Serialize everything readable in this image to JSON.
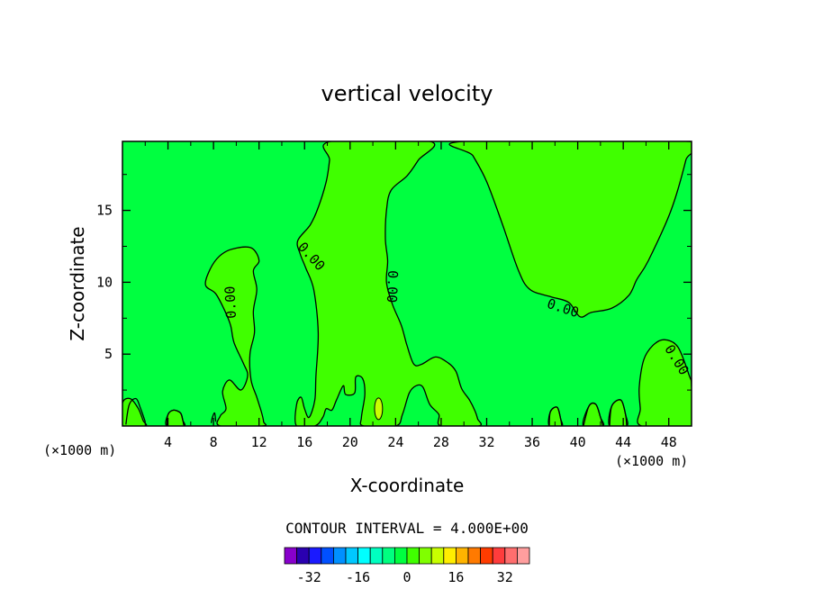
{
  "chart_data": {
    "type": "contour",
    "title": "vertical velocity",
    "xlabel": "X-coordinate",
    "ylabel": "Z-coordinate",
    "x_unit": "(×1000 m)",
    "x_unit_right": "(×1000 m)",
    "xlim": [
      0,
      50
    ],
    "ylim": [
      0,
      19.8
    ],
    "x_ticks": [
      4,
      8,
      12,
      16,
      20,
      24,
      28,
      32,
      36,
      40,
      44,
      48
    ],
    "y_ticks": [
      5,
      10,
      15
    ],
    "contour_label": "0.00",
    "contour_interval_text": "CONTOUR INTERVAL = 4.000E+00",
    "background_color": "#00ff40",
    "positive_region_color": "#40ff00",
    "small_cell_color": "#c8ff00",
    "colorbar": {
      "colors": [
        "#8800cc",
        "#2a00b0",
        "#1a1aff",
        "#0050ff",
        "#0090ff",
        "#00c8ff",
        "#00ffff",
        "#00ffc0",
        "#00ff80",
        "#00ff40",
        "#40ff00",
        "#80ff00",
        "#c8ff00",
        "#ffee00",
        "#ffb400",
        "#ff7a00",
        "#ff3c00",
        "#ff3c3c",
        "#ff6e6e",
        "#ff9e9e"
      ],
      "tick_labels": [
        "-32",
        "-16",
        "0",
        "16",
        "32"
      ],
      "tick_values": [
        -32,
        -16,
        0,
        16,
        32
      ],
      "vmin": -40,
      "vmax": 40
    },
    "regions_positive": [
      {
        "name": "central-plume",
        "polygon": [
          [
            15.3,
            0
          ],
          [
            15.3,
            1.5
          ],
          [
            15.7,
            2.0
          ],
          [
            16.0,
            1.2
          ],
          [
            16.4,
            0.6
          ],
          [
            16.9,
            1.8
          ],
          [
            17.0,
            3.5
          ],
          [
            17.2,
            6.5
          ],
          [
            16.8,
            9.5
          ],
          [
            16.1,
            11.0
          ],
          [
            15.6,
            12.0
          ],
          [
            15.4,
            12.9
          ],
          [
            16.5,
            14.0
          ],
          [
            17.2,
            15.2
          ],
          [
            17.9,
            17.0
          ],
          [
            18.2,
            18.5
          ],
          [
            18.3,
            19.8
          ],
          [
            27.0,
            19.8
          ],
          [
            26.0,
            18.5
          ],
          [
            25.0,
            17.4
          ],
          [
            23.6,
            16.4
          ],
          [
            23.2,
            15.0
          ],
          [
            23.1,
            13.0
          ],
          [
            23.3,
            11.5
          ],
          [
            23.2,
            10.0
          ],
          [
            23.7,
            8.5
          ],
          [
            24.5,
            7.0
          ],
          [
            25.0,
            5.6
          ],
          [
            25.6,
            4.3
          ],
          [
            26.3,
            4.3
          ],
          [
            27.5,
            4.8
          ],
          [
            28.6,
            4.4
          ],
          [
            29.3,
            3.8
          ],
          [
            29.8,
            2.6
          ],
          [
            30.5,
            1.8
          ],
          [
            31.0,
            1.0
          ],
          [
            31.2,
            0.5
          ],
          [
            31.3,
            0
          ],
          [
            28.0,
            0
          ],
          [
            27.8,
            0.8
          ],
          [
            27.0,
            1.5
          ],
          [
            26.4,
            2.7
          ],
          [
            25.8,
            2.8
          ],
          [
            25.2,
            2.3
          ],
          [
            24.6,
            0.8
          ],
          [
            24.0,
            0
          ],
          [
            21.2,
            0
          ],
          [
            21.0,
            0.6
          ],
          [
            21.3,
            2.2
          ],
          [
            21.1,
            3.3
          ],
          [
            20.5,
            3.4
          ],
          [
            20.4,
            2.3
          ],
          [
            19.6,
            2.2
          ],
          [
            19.4,
            2.8
          ],
          [
            18.8,
            1.8
          ],
          [
            18.4,
            1.1
          ],
          [
            17.9,
            1.2
          ],
          [
            17.6,
            0.6
          ],
          [
            16.9,
            0
          ]
        ]
      },
      {
        "name": "upper-right-lobe",
        "polygon": [
          [
            30.0,
            19.8
          ],
          [
            49.7,
            19.8
          ],
          [
            49.5,
            18.5
          ],
          [
            48.2,
            15.0
          ],
          [
            46.2,
            11.5
          ],
          [
            45.2,
            10.2
          ],
          [
            44.5,
            9.1
          ],
          [
            43.0,
            8.2
          ],
          [
            41.2,
            7.9
          ],
          [
            40.2,
            7.6
          ],
          [
            39.2,
            8.6
          ],
          [
            37.6,
            9.0
          ],
          [
            35.8,
            9.5
          ],
          [
            34.8,
            10.8
          ],
          [
            33.4,
            14.0
          ],
          [
            32.0,
            17.0
          ],
          [
            30.8,
            18.8
          ]
        ]
      },
      {
        "name": "left-column",
        "polygon": [
          [
            8.6,
            0
          ],
          [
            8.6,
            0.7
          ],
          [
            9.1,
            1.2
          ],
          [
            8.8,
            2.4
          ],
          [
            9.4,
            3.2
          ],
          [
            10.4,
            2.5
          ],
          [
            11.0,
            3.5
          ],
          [
            10.6,
            4.4
          ],
          [
            9.8,
            5.8
          ],
          [
            9.5,
            7.0
          ],
          [
            9.0,
            8.0
          ],
          [
            8.2,
            9.2
          ],
          [
            7.3,
            9.8
          ],
          [
            7.7,
            10.9
          ],
          [
            8.5,
            11.8
          ],
          [
            9.6,
            12.3
          ],
          [
            11.3,
            12.4
          ],
          [
            12.0,
            11.5
          ],
          [
            11.5,
            10.8
          ],
          [
            11.8,
            9.5
          ],
          [
            11.5,
            8.0
          ],
          [
            11.6,
            6.5
          ],
          [
            11.2,
            5.0
          ],
          [
            11.3,
            3.2
          ],
          [
            11.8,
            2.0
          ],
          [
            12.2,
            1.0
          ],
          [
            12.4,
            0.3
          ],
          [
            12.3,
            0
          ]
        ]
      },
      {
        "name": "right-bump",
        "polygon": [
          [
            45.6,
            0
          ],
          [
            45.5,
            1.2
          ],
          [
            45.4,
            2.7
          ],
          [
            45.8,
            4.6
          ],
          [
            46.6,
            5.6
          ],
          [
            47.6,
            6.0
          ],
          [
            48.8,
            5.5
          ],
          [
            49.8,
            3.5
          ],
          [
            50,
            2.8
          ],
          [
            50,
            0
          ]
        ]
      },
      {
        "name": "far-left-blob",
        "polygon": [
          [
            0,
            0
          ],
          [
            0,
            1.6
          ],
          [
            0.7,
            1.9
          ],
          [
            1.4,
            1.2
          ],
          [
            1.8,
            0.4
          ],
          [
            2.0,
            0
          ]
        ]
      },
      {
        "name": "bump-41",
        "polygon": [
          [
            40.5,
            0
          ],
          [
            41.0,
            1.4
          ],
          [
            41.6,
            1.5
          ],
          [
            42.0,
            0.6
          ],
          [
            42.2,
            0
          ]
        ]
      },
      {
        "name": "bump-43",
        "polygon": [
          [
            42.8,
            0
          ],
          [
            43.0,
            1.4
          ],
          [
            43.8,
            1.8
          ],
          [
            44.2,
            0.8
          ],
          [
            44.3,
            0
          ]
        ]
      },
      {
        "name": "bump-38",
        "polygon": [
          [
            37.5,
            0
          ],
          [
            37.6,
            1.0
          ],
          [
            38.2,
            1.3
          ],
          [
            38.5,
            0.5
          ],
          [
            38.6,
            0
          ]
        ]
      },
      {
        "name": "bump-5",
        "polygon": [
          [
            3.9,
            0
          ],
          [
            4.0,
            0.8
          ],
          [
            4.5,
            1.1
          ],
          [
            5.1,
            0.9
          ],
          [
            5.3,
            0.4
          ],
          [
            5.4,
            0
          ]
        ]
      }
    ],
    "contours_open": [
      {
        "points": [
          [
            0.3,
            0.1
          ],
          [
            0.6,
            1.5
          ],
          [
            1.2,
            1.9
          ],
          [
            1.6,
            1.2
          ],
          [
            2.0,
            0.3
          ]
        ]
      },
      {
        "points": [
          [
            3.9,
            0
          ],
          [
            4.0,
            0.8
          ],
          [
            4.5,
            1.1
          ],
          [
            5.1,
            0.9
          ],
          [
            5.3,
            0.4
          ],
          [
            5.4,
            0
          ]
        ]
      },
      {
        "points": [
          [
            7.8,
            0.2
          ],
          [
            7.9,
            0.6
          ],
          [
            8.1,
            0.9
          ],
          [
            8.2,
            0.3
          ]
        ]
      },
      {
        "points": [
          [
            40.5,
            0
          ],
          [
            41.0,
            1.4
          ],
          [
            41.6,
            1.5
          ],
          [
            42.0,
            0.6
          ],
          [
            42.2,
            0
          ]
        ]
      },
      {
        "points": [
          [
            42.8,
            0
          ],
          [
            43.0,
            1.4
          ],
          [
            43.8,
            1.8
          ],
          [
            44.2,
            0.8
          ],
          [
            44.3,
            0
          ]
        ]
      },
      {
        "points": [
          [
            37.5,
            0
          ],
          [
            37.6,
            1.0
          ],
          [
            38.2,
            1.3
          ],
          [
            38.5,
            0.5
          ],
          [
            38.6,
            0
          ]
        ]
      }
    ],
    "small_cell": {
      "x": 22.5,
      "z": 1.2,
      "rx": 0.35,
      "rz": 0.75
    },
    "contour_labels": [
      {
        "x": 16.6,
        "z": 11.8,
        "angle": 48
      },
      {
        "x": 23.7,
        "z": 9.7,
        "angle": 92
      },
      {
        "x": 38.7,
        "z": 8.2,
        "angle": 18
      },
      {
        "x": 9.5,
        "z": 8.6,
        "angle": -93
      },
      {
        "x": 48.7,
        "z": 4.6,
        "angle": 58
      }
    ]
  }
}
